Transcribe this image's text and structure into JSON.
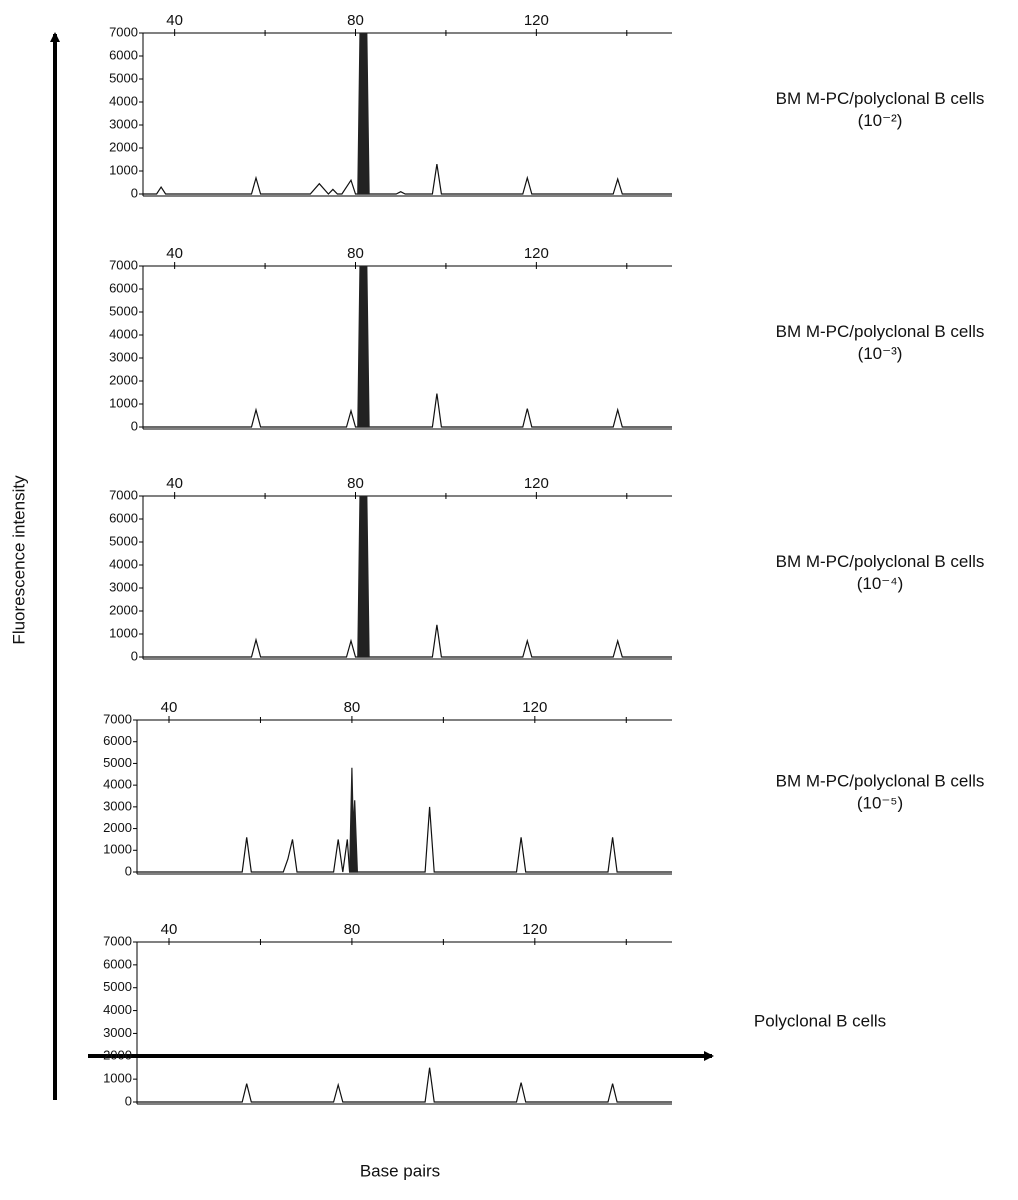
{
  "ylabel": "Fluorescence intensity",
  "xlabel": "Base pairs",
  "chart_data": [
    {
      "type": "line",
      "label": "BM M-PC/polyclonal B cells",
      "sublabel": "(10⁻²)",
      "xlim": [
        33,
        150
      ],
      "xticks": [
        40,
        80,
        120
      ],
      "xminorticks": [
        60,
        100,
        140
      ],
      "ylim": [
        0,
        7000
      ],
      "yticks": [
        0,
        1000,
        2000,
        3000,
        4000,
        5000,
        6000,
        7000
      ],
      "series": [
        {
          "color": "#111111",
          "x": [
            33,
            36,
            37,
            38,
            57,
            58,
            59,
            70,
            72,
            74,
            75,
            76,
            77,
            79,
            80,
            84,
            89,
            90,
            91,
            97,
            98,
            99,
            117,
            118,
            119,
            137,
            138,
            139,
            150
          ],
          "values": [
            0,
            0,
            300,
            0,
            0,
            700,
            0,
            0,
            450,
            0,
            200,
            0,
            0,
            600,
            0,
            0,
            0,
            100,
            0,
            0,
            1300,
            0,
            0,
            700,
            0,
            0,
            650,
            0,
            0
          ]
        },
        {
          "color": "#222222",
          "fill": true,
          "x": [
            80.5,
            81,
            82.5,
            83
          ],
          "values": [
            0,
            7000,
            7000,
            0
          ]
        }
      ]
    },
    {
      "type": "line",
      "label": "BM M-PC/polyclonal B cells",
      "sublabel": "(10⁻³)",
      "xlim": [
        33,
        150
      ],
      "xticks": [
        40,
        80,
        120
      ],
      "xminorticks": [
        60,
        100,
        140
      ],
      "ylim": [
        0,
        7000
      ],
      "yticks": [
        0,
        1000,
        2000,
        3000,
        4000,
        5000,
        6000,
        7000
      ],
      "series": [
        {
          "color": "#111111",
          "x": [
            33,
            57,
            58,
            59,
            78,
            79,
            80,
            84,
            97,
            98,
            99,
            117,
            118,
            119,
            137,
            138,
            139,
            150
          ],
          "values": [
            0,
            0,
            750,
            0,
            0,
            700,
            0,
            0,
            0,
            1450,
            0,
            0,
            800,
            0,
            0,
            750,
            0,
            0
          ]
        },
        {
          "color": "#222222",
          "fill": true,
          "x": [
            80.5,
            81,
            82.5,
            83
          ],
          "values": [
            0,
            7000,
            7000,
            0
          ]
        }
      ]
    },
    {
      "type": "line",
      "label": "BM M-PC/polyclonal B cells",
      "sublabel": "(10⁻⁴)",
      "xlim": [
        33,
        150
      ],
      "xticks": [
        40,
        80,
        120
      ],
      "xminorticks": [
        60,
        100,
        140
      ],
      "ylim": [
        0,
        7000
      ],
      "yticks": [
        0,
        1000,
        2000,
        3000,
        4000,
        5000,
        6000,
        7000
      ],
      "series": [
        {
          "color": "#111111",
          "x": [
            33,
            57,
            58,
            59,
            78,
            79,
            80,
            84,
            97,
            98,
            99,
            117,
            118,
            119,
            137,
            138,
            139,
            150
          ],
          "values": [
            0,
            0,
            750,
            0,
            0,
            700,
            0,
            0,
            0,
            1400,
            0,
            0,
            700,
            0,
            0,
            700,
            0,
            0
          ]
        },
        {
          "color": "#222222",
          "fill": true,
          "x": [
            80.5,
            81,
            82.5,
            83
          ],
          "values": [
            0,
            7000,
            7000,
            0
          ]
        }
      ]
    },
    {
      "type": "line",
      "label": "BM M-PC/polyclonal B cells",
      "sublabel": "(10⁻⁵)",
      "xlim": [
        33,
        150
      ],
      "xticks": [
        40,
        80,
        120
      ],
      "xminorticks": [
        60,
        100,
        140
      ],
      "ylim": [
        0,
        7000
      ],
      "yticks": [
        0,
        1000,
        2000,
        3000,
        4000,
        5000,
        6000,
        7000
      ],
      "series": [
        {
          "color": "#111111",
          "x": [
            33,
            56,
            57,
            58,
            65,
            66,
            67,
            68,
            76,
            77,
            78,
            79,
            79.5,
            84,
            96,
            97,
            98,
            116,
            117,
            118,
            136,
            137,
            138,
            150
          ],
          "values": [
            0,
            0,
            1600,
            0,
            0,
            600,
            1500,
            0,
            0,
            1500,
            0,
            1500,
            0,
            0,
            0,
            3000,
            0,
            0,
            1600,
            0,
            0,
            1600,
            0,
            0
          ]
        },
        {
          "color": "#222222",
          "fill": true,
          "x": [
            79.5,
            80,
            80.3,
            80.6,
            81.2
          ],
          "values": [
            0,
            4800,
            2000,
            3300,
            0
          ]
        }
      ]
    },
    {
      "type": "line",
      "label": "Polyclonal B cells",
      "xlim": [
        33,
        150
      ],
      "xticks": [
        40,
        80,
        120
      ],
      "xminorticks": [
        60,
        100,
        140
      ],
      "ylim": [
        0,
        7000
      ],
      "yticks": [
        0,
        1000,
        2000,
        3000,
        4000,
        5000,
        6000,
        7000
      ],
      "series": [
        {
          "color": "#111111",
          "x": [
            33,
            56,
            57,
            58,
            76,
            77,
            78,
            96,
            97,
            98,
            116,
            117,
            118,
            136,
            137,
            138,
            150
          ],
          "values": [
            0,
            0,
            800,
            0,
            0,
            750,
            0,
            0,
            1500,
            0,
            0,
            850,
            0,
            0,
            800,
            0,
            0
          ]
        }
      ]
    }
  ]
}
